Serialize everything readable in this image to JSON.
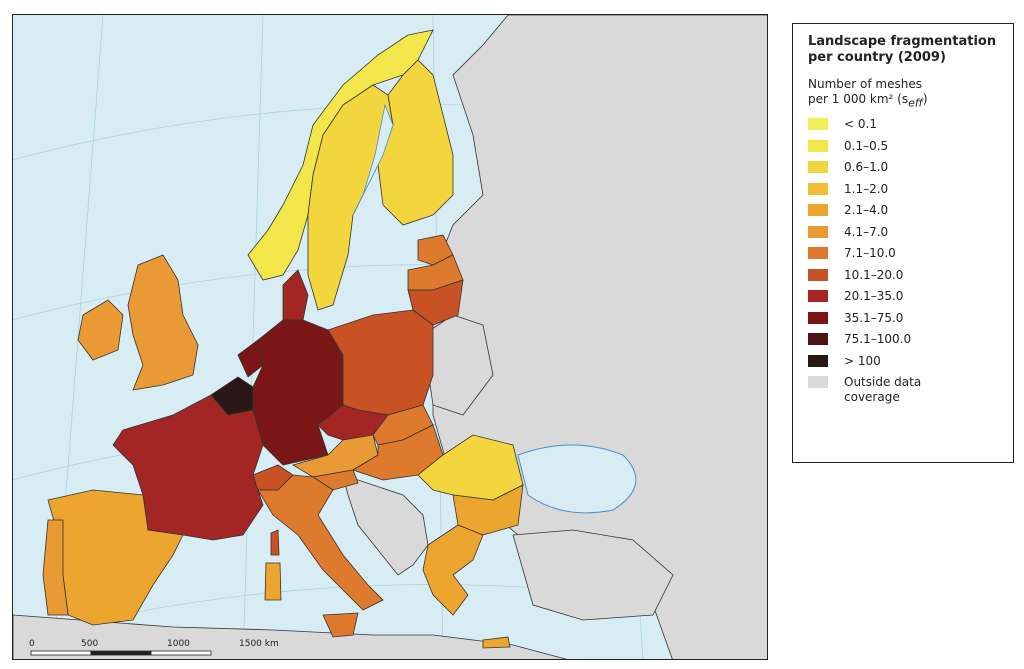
{
  "map": {
    "scale_bar": {
      "labels": [
        "0",
        "500",
        "1000",
        "1500 km"
      ]
    },
    "regions": [
      {
        "name": "Norway",
        "class": "0.1-0.5",
        "color": "#f2e64a"
      },
      {
        "name": "Sweden",
        "class": "0.6-1.0",
        "color": "#f3d53d"
      },
      {
        "name": "Finland",
        "class": "0.6-1.0",
        "color": "#f3d53d"
      },
      {
        "name": "Estonia",
        "class": "7.1-10.0",
        "color": "#de7a2e"
      },
      {
        "name": "Latvia",
        "class": "7.1-10.0",
        "color": "#de7a2e"
      },
      {
        "name": "Lithuania",
        "class": "10.1-20.0",
        "color": "#c95224"
      },
      {
        "name": "Ireland",
        "class": "4.1-7.0",
        "color": "#ea9a35"
      },
      {
        "name": "United Kingdom",
        "class": "4.1-7.0",
        "color": "#ea9a35"
      },
      {
        "name": "Denmark",
        "class": "20.1-35.0",
        "color": "#a32625"
      },
      {
        "name": "Netherlands",
        "class": "35.1-75.0",
        "color": "#7a1616"
      },
      {
        "name": "Belgium",
        "class": "> 100",
        "color": "#2a1614"
      },
      {
        "name": "Luxembourg",
        "class": "> 100",
        "color": "#2a1614"
      },
      {
        "name": "Germany",
        "class": "35.1-75.0",
        "color": "#7a1616"
      },
      {
        "name": "Poland",
        "class": "10.1-20.0",
        "color": "#c95224"
      },
      {
        "name": "Czech Republic",
        "class": "20.1-35.0",
        "color": "#a32625"
      },
      {
        "name": "France",
        "class": "20.1-35.0",
        "color": "#a32625"
      },
      {
        "name": "Switzerland",
        "class": "10.1-20.0",
        "color": "#c95224"
      },
      {
        "name": "Austria",
        "class": "4.1-7.0",
        "color": "#ea9a35"
      },
      {
        "name": "Slovakia",
        "class": "7.1-10.0",
        "color": "#de7a2e"
      },
      {
        "name": "Hungary",
        "class": "7.1-10.0",
        "color": "#de7a2e"
      },
      {
        "name": "Slovenia",
        "class": "7.1-10.0",
        "color": "#de7a2e"
      },
      {
        "name": "Italy",
        "class": "7.1-10.0",
        "color": "#de7a2e"
      },
      {
        "name": "Romania",
        "class": "0.6-1.0",
        "color": "#f3d53d"
      },
      {
        "name": "Bulgaria",
        "class": "2.1-4.0",
        "color": "#eca630"
      },
      {
        "name": "Greece",
        "class": "2.1-4.0",
        "color": "#eca630"
      },
      {
        "name": "Spain",
        "class": "2.1-4.0",
        "color": "#eca630"
      },
      {
        "name": "Portugal",
        "class": "4.1-7.0",
        "color": "#ea9a35"
      },
      {
        "name": "Corsica",
        "class": "10.1-20.0",
        "color": "#c95224"
      },
      {
        "name": "Sardinia",
        "class": "2.1-4.0",
        "color": "#eca630"
      },
      {
        "name": "Sicily",
        "class": "7.1-10.0",
        "color": "#de7a2e"
      },
      {
        "name": "Cyprus",
        "class": "2.1-4.0",
        "color": "#eca630"
      }
    ],
    "colors": {
      "sea": "#d7ecf3",
      "outside": "#d9d9d9",
      "border": "#333333",
      "coast": "#4a8fc9"
    }
  },
  "legend": {
    "title_line1": "Landscape fragmentation",
    "title_line2": "per country (2009)",
    "subtitle_line1": "Number of meshes",
    "subtitle_line2": "per 1 000 km² (s",
    "subtitle_subscript": "eff",
    "subtitle_close": ")",
    "items": [
      {
        "label": "< 0.1",
        "color": "#f0ef5a"
      },
      {
        "label": "0.1–0.5",
        "color": "#f2e64a"
      },
      {
        "label": "0.6–1.0",
        "color": "#f3d53d"
      },
      {
        "label": "1.1–2.0",
        "color": "#f0bd34"
      },
      {
        "label": "2.1–4.0",
        "color": "#eca630"
      },
      {
        "label": "4.1–7.0",
        "color": "#ea9a35"
      },
      {
        "label": "7.1–10.0",
        "color": "#de7a2e"
      },
      {
        "label": "10.1–20.0",
        "color": "#c95224"
      },
      {
        "label": "20.1–35.0",
        "color": "#a32625"
      },
      {
        "label": "35.1–75.0",
        "color": "#7a1616"
      },
      {
        "label": "75.1–100.0",
        "color": "#4e1413"
      },
      {
        "label": "> 100",
        "color": "#2a1614"
      }
    ],
    "outside": {
      "line1": "Outside data",
      "line2": "coverage",
      "color": "#d9d9d9"
    }
  }
}
